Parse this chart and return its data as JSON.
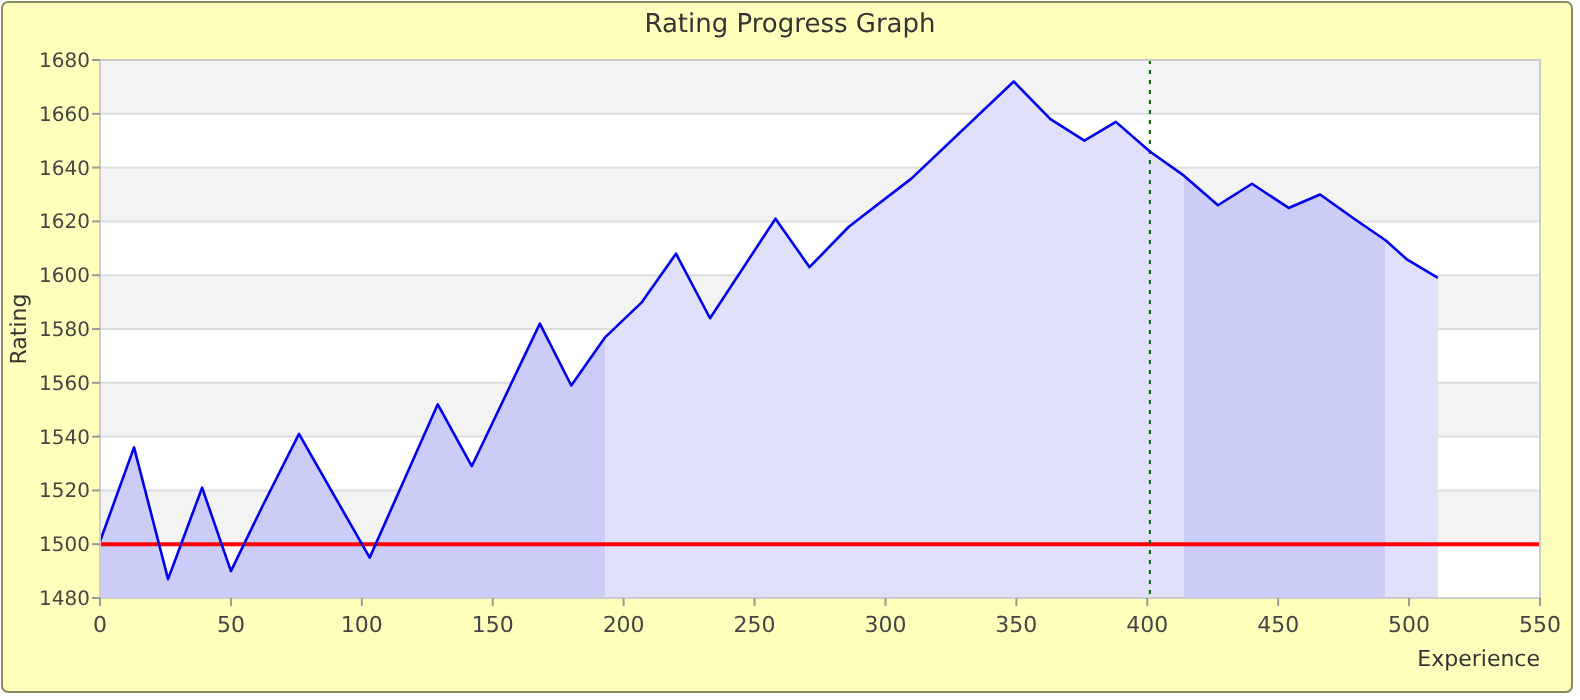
{
  "chart_data": {
    "type": "area",
    "title": "Rating Progress Graph",
    "xlabel": "Experience",
    "ylabel": "Rating",
    "xlim": [
      0,
      550
    ],
    "xticks": [
      0,
      50,
      100,
      150,
      200,
      250,
      300,
      350,
      400,
      450,
      500,
      550
    ],
    "ylim": [
      1480,
      1680
    ],
    "yticks": [
      1480,
      1500,
      1520,
      1540,
      1560,
      1580,
      1600,
      1620,
      1640,
      1660,
      1680
    ],
    "grid": "y",
    "marker": "none",
    "series": [
      {
        "color": "#ccccf8",
        "x": [
          0,
          13,
          26,
          39,
          50,
          62,
          76,
          103,
          129,
          142,
          168,
          180,
          193
        ],
        "values": [
          1501,
          1536,
          1487,
          1521,
          1490,
          1514,
          1541,
          1495,
          1552,
          1529,
          1582,
          1559,
          1577
        ]
      },
      {
        "color": "#e0e0fb",
        "x": [
          193,
          207,
          220,
          233,
          258,
          271,
          286,
          310,
          349,
          363,
          376,
          388,
          401,
          414
        ],
        "values": [
          1577,
          1590,
          1608,
          1584,
          1621,
          1603,
          1618,
          1636,
          1672,
          1658,
          1650,
          1657,
          1646,
          1637
        ]
      },
      {
        "color": "#ccccf8",
        "x": [
          414,
          427,
          440,
          454,
          466,
          479,
          491
        ],
        "values": [
          1637,
          1626,
          1634,
          1625,
          1630,
          1621,
          1613
        ]
      },
      {
        "color": "#e0e0fb",
        "x": [
          491,
          499,
          511
        ],
        "values": [
          1613,
          1606,
          1599
        ]
      },
      {
        "type": "line",
        "color": "#0000ee",
        "line_style": "solid",
        "x": [
          0,
          13,
          26,
          39,
          50,
          62,
          76,
          103,
          129,
          142,
          168,
          180,
          193,
          207,
          220,
          233,
          258,
          271,
          286,
          310,
          349,
          363,
          376,
          388,
          401,
          414,
          427,
          440,
          454,
          466,
          479,
          491,
          499,
          511
        ],
        "values": [
          1501,
          1536,
          1487,
          1521,
          1490,
          1514,
          1541,
          1495,
          1552,
          1529,
          1582,
          1559,
          1577,
          1590,
          1608,
          1584,
          1621,
          1603,
          1618,
          1636,
          1672,
          1658,
          1650,
          1657,
          1646,
          1637,
          1626,
          1634,
          1625,
          1630,
          1621,
          1613,
          1606,
          1599
        ]
      }
    ],
    "ref_lines": [
      {
        "axis": "y",
        "value": 1500,
        "color": "#ff0000",
        "line_style": "solid"
      },
      {
        "axis": "x",
        "value": 401,
        "color": "#006600",
        "line_style": "dotted"
      }
    ]
  }
}
